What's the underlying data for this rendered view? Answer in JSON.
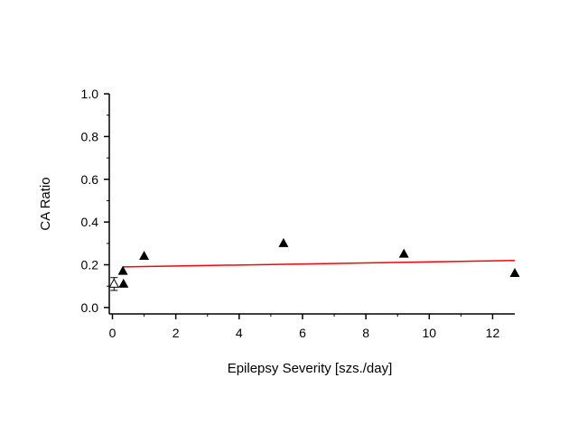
{
  "chart_data": {
    "type": "scatter",
    "title": "",
    "xlabel": "Epilepsy Severity [szs./day]",
    "ylabel": "CA Ratio",
    "xlim": [
      -0.1,
      12.7
    ],
    "ylim": [
      -0.03,
      1.0
    ],
    "xticks": [
      "0",
      "2",
      "4",
      "6",
      "8",
      "10",
      "12"
    ],
    "yticks": [
      "0.0",
      "0.2",
      "0.4",
      "0.6",
      "0.8",
      "1.0"
    ],
    "grid": false,
    "series": [
      {
        "marker": "filled-triangle",
        "color": "#000000",
        "points": [
          {
            "x": 0.33,
            "y": 0.17
          },
          {
            "x": 0.35,
            "y": 0.11
          },
          {
            "x": 1.0,
            "y": 0.24
          },
          {
            "x": 5.4,
            "y": 0.3
          },
          {
            "x": 9.2,
            "y": 0.25
          },
          {
            "x": 12.7,
            "y": 0.16
          }
        ]
      },
      {
        "marker": "open-triangle-errorbar",
        "color": "#000000",
        "points": [
          {
            "x": 0.05,
            "y": 0.11,
            "err": 0.03
          }
        ]
      }
    ],
    "fit_line": {
      "color": "#ff0000",
      "x": [
        0.33,
        12.7
      ],
      "y": [
        0.19,
        0.22
      ]
    }
  }
}
